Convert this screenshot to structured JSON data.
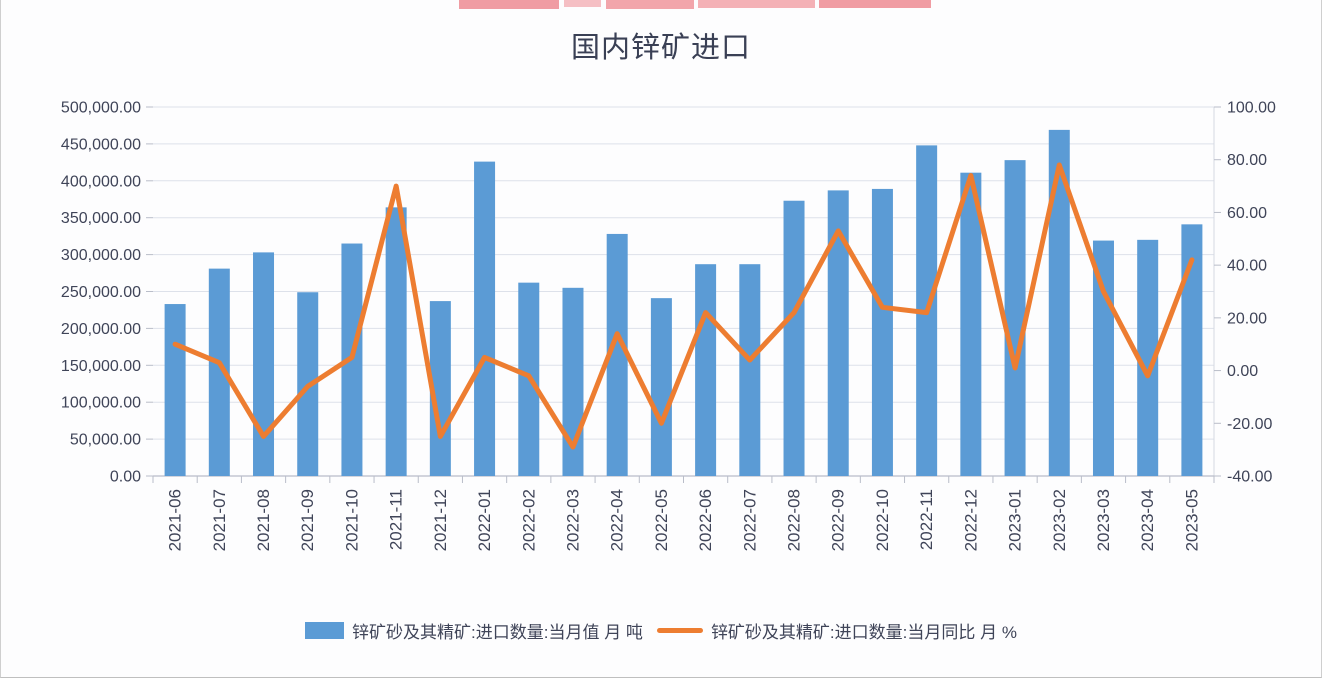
{
  "page": {
    "title": "国内锌矿进口"
  },
  "legend": {
    "bar_label": "锌矿砂及其精矿:进口数量:当月值 月 吨",
    "line_label": "锌矿砂及其精矿:进口数量:当月同比 月 %"
  },
  "colors": {
    "bar": "#5B9BD5",
    "line": "#ED7D31",
    "text": "#3F4458",
    "grid": "#DDE1EA",
    "axis": "#B9BDC9",
    "watermark_pink_dark": "#F09CA3",
    "watermark_pink_light": "#F5BFC4"
  },
  "chart_data": {
    "type": "combo",
    "title": "国内锌矿进口",
    "grid": true,
    "legend_position": "bottom",
    "categories": [
      "2021-06",
      "2021-07",
      "2021-08",
      "2021-09",
      "2021-10",
      "2021-11",
      "2021-12",
      "2022-01",
      "2022-02",
      "2022-03",
      "2022-04",
      "2022-05",
      "2022-06",
      "2022-07",
      "2022-08",
      "2022-09",
      "2022-10",
      "2022-11",
      "2022-12",
      "2023-01",
      "2023-02",
      "2023-03",
      "2023-04",
      "2023-05"
    ],
    "series": [
      {
        "name": "锌矿砂及其精矿:进口数量:当月值 月 吨",
        "type": "bar",
        "axis": "left",
        "values": [
          233000,
          281000,
          303000,
          249000,
          315000,
          364000,
          237000,
          426000,
          262000,
          255000,
          328000,
          241000,
          287000,
          287000,
          373000,
          387000,
          389000,
          448000,
          411000,
          428000,
          469000,
          319000,
          320000,
          341000
        ]
      },
      {
        "name": "锌矿砂及其精矿:进口数量:当月同比 月 %",
        "type": "line",
        "axis": "right",
        "values": [
          10,
          3,
          -25,
          -6,
          5,
          70,
          -25,
          5,
          -2,
          -29,
          14,
          -20,
          22,
          4,
          22,
          53,
          24,
          22,
          74,
          1,
          78,
          30,
          -2,
          42
        ]
      }
    ],
    "left_axis": {
      "min": 0,
      "max": 500000,
      "tick_step": 50000,
      "tick_labels": [
        "0.00",
        "50,000.00",
        "100,000.00",
        "150,000.00",
        "200,000.00",
        "250,000.00",
        "300,000.00",
        "350,000.00",
        "400,000.00",
        "450,000.00",
        "500,000.00"
      ]
    },
    "right_axis": {
      "min": -40,
      "max": 100,
      "tick_step": 20,
      "tick_labels": [
        "-40.00",
        "-20.00",
        "0.00",
        "20.00",
        "40.00",
        "60.00",
        "80.00",
        "100.00"
      ]
    }
  }
}
